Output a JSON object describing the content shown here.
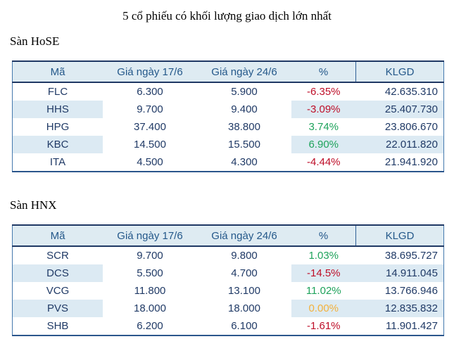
{
  "title": "5 cổ phiếu có khối lượng giao dịch lớn nhất",
  "colors": {
    "positive": "#1FA35C",
    "negative": "#BE0E28",
    "zero": "#F3B13C",
    "header_text": "#24588A",
    "body_text": "#203A66",
    "header_bg": "#DEEBF2",
    "band_bg": "#DCEAF3"
  },
  "tables": [
    {
      "section_label": "Sàn HoSE",
      "columns": [
        "Mã",
        "Giá ngày 17/6",
        "Giá ngày 24/6",
        "%",
        "KLGD"
      ],
      "rows": [
        {
          "code": "FLC",
          "price_17_6": "6.300",
          "price_24_6": "5.900",
          "pct": "-6.35%",
          "pct_status": "negative",
          "klgd": "42.635.310",
          "banded": false
        },
        {
          "code": "HHS",
          "price_17_6": "9.700",
          "price_24_6": "9.400",
          "pct": "-3.09%",
          "pct_status": "negative",
          "klgd": "25.407.730",
          "banded": true
        },
        {
          "code": "HPG",
          "price_17_6": "37.400",
          "price_24_6": "38.800",
          "pct": "3.74%",
          "pct_status": "positive",
          "klgd": "23.806.670",
          "banded": false
        },
        {
          "code": "KBC",
          "price_17_6": "14.500",
          "price_24_6": "15.500",
          "pct": "6.90%",
          "pct_status": "positive",
          "klgd": "22.011.820",
          "banded": true
        },
        {
          "code": "ITA",
          "price_17_6": "4.500",
          "price_24_6": "4.300",
          "pct": "-4.44%",
          "pct_status": "negative",
          "klgd": "21.941.920",
          "banded": false
        }
      ]
    },
    {
      "section_label": "Sàn HNX",
      "columns": [
        "Mã",
        "Giá ngày 17/6",
        "Giá ngày 24/6",
        "%",
        "KLGD"
      ],
      "rows": [
        {
          "code": "SCR",
          "price_17_6": "9.700",
          "price_24_6": "9.800",
          "pct": "1.03%",
          "pct_status": "positive",
          "klgd": "38.695.727",
          "banded": false
        },
        {
          "code": "DCS",
          "price_17_6": "5.500",
          "price_24_6": "4.700",
          "pct": "-14.5%",
          "pct_status": "negative",
          "klgd": "14.911.045",
          "banded": true
        },
        {
          "code": "VCG",
          "price_17_6": "11.800",
          "price_24_6": "13.100",
          "pct": "11.02%",
          "pct_status": "positive",
          "klgd": "13.766.946",
          "banded": false
        },
        {
          "code": "PVS",
          "price_17_6": "18.000",
          "price_24_6": "18.000",
          "pct": "0.00%",
          "pct_status": "zero",
          "klgd": "12.835.832",
          "banded": true
        },
        {
          "code": "SHB",
          "price_17_6": "6.200",
          "price_24_6": "6.100",
          "pct": "-1.61%",
          "pct_status": "negative",
          "klgd": "11.901.427",
          "banded": false
        }
      ]
    }
  ]
}
